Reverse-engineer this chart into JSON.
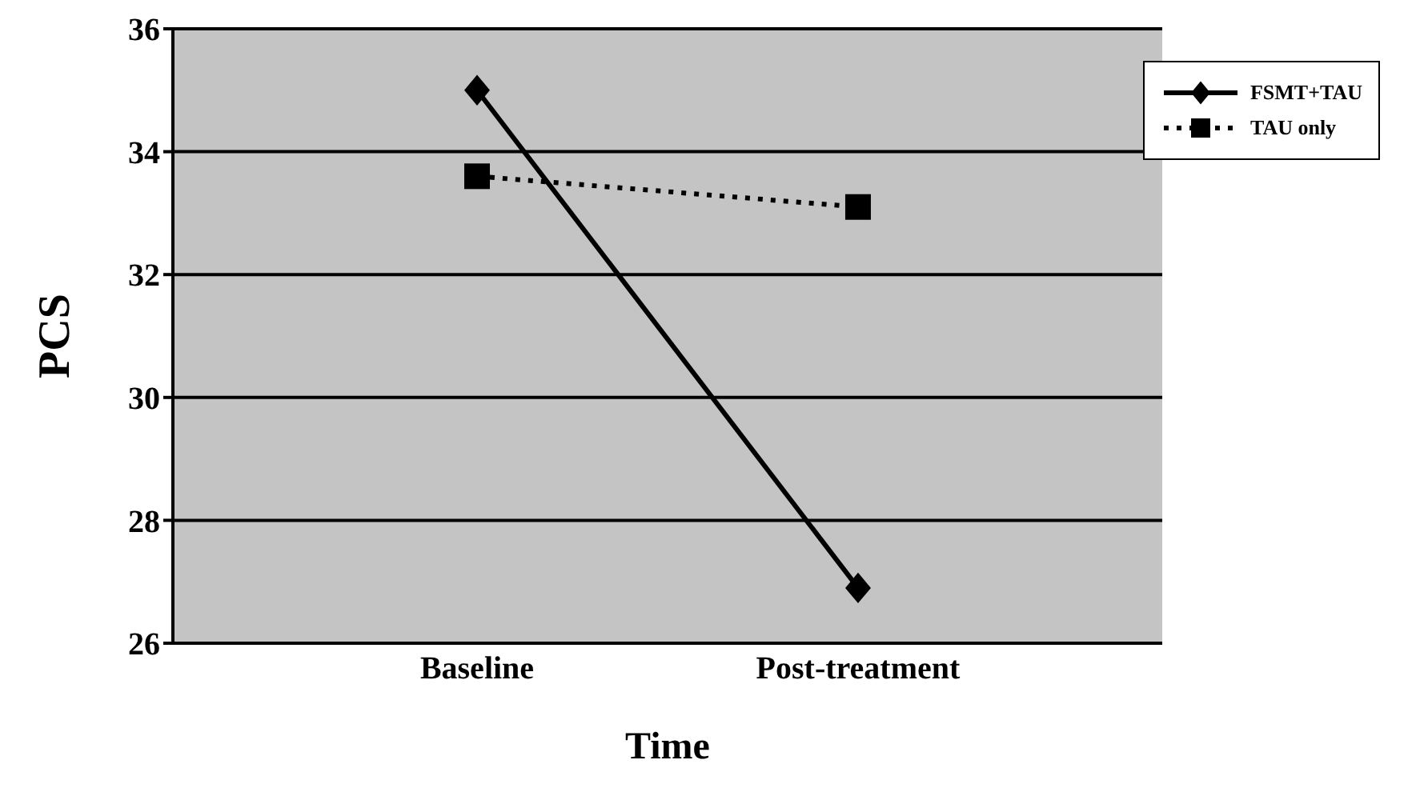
{
  "chart_data": {
    "type": "line",
    "xlabel": "Time",
    "ylabel": "PCS",
    "categories": [
      "Baseline",
      "Post-treatment"
    ],
    "series": [
      {
        "name": "FSMT+TAU",
        "color": "#000000",
        "values": [
          35.0,
          26.9
        ],
        "marker": "diamond",
        "line_style": "solid"
      },
      {
        "name": "TAU only",
        "color": "#000000",
        "values": [
          33.6,
          33.1
        ],
        "marker": "square",
        "line_style": "dotted"
      }
    ],
    "ylim": [
      26,
      36
    ],
    "yticks": [
      26,
      28,
      30,
      32,
      34,
      36
    ],
    "grid": "y",
    "legend": "top right"
  }
}
